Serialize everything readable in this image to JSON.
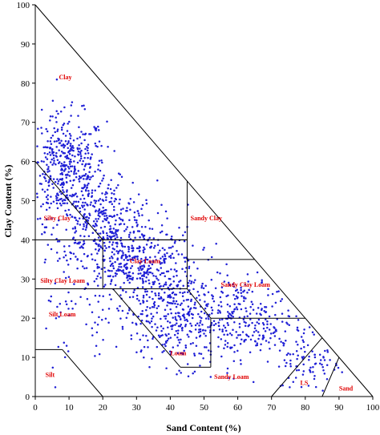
{
  "chart_data": {
    "type": "scatter",
    "title": "",
    "xlabel": "Sand Content (%)",
    "ylabel": "Clay Content (%)",
    "xlim": [
      0,
      100
    ],
    "ylim": [
      0,
      100
    ],
    "xticks": [
      "0",
      "10",
      "20",
      "30",
      "40",
      "50",
      "60",
      "70",
      "80",
      "90",
      "100"
    ],
    "yticks": [
      "0",
      "10",
      "20",
      "30",
      "40",
      "50",
      "60",
      "70",
      "80",
      "90",
      "100"
    ],
    "grid": false,
    "legend": "none",
    "point_color": "#1f1fd6",
    "label_color": "#e00000",
    "regions": [
      {
        "name": "Clay",
        "x": 7,
        "y": 81
      },
      {
        "name": "Silty Clay",
        "x": 2.5,
        "y": 45
      },
      {
        "name": "Sandy Clay",
        "x": 46,
        "y": 45
      },
      {
        "name": "Clay Loam",
        "x": 28,
        "y": 34
      },
      {
        "name": "Silty Clay Loam",
        "x": 1.5,
        "y": 29
      },
      {
        "name": "Sandy Clay Loam",
        "x": 55,
        "y": 28
      },
      {
        "name": "Loam",
        "x": 40,
        "y": 10.5
      },
      {
        "name": "Silt Loam",
        "x": 4,
        "y": 20.5
      },
      {
        "name": "Sandy Loam",
        "x": 53,
        "y": 4.5
      },
      {
        "name": "Silt",
        "x": 3,
        "y": 5
      },
      {
        "name": "LS",
        "x": 78.5,
        "y": 3
      },
      {
        "name": "Sand",
        "x": 90,
        "y": 1.5
      }
    ],
    "boundaries": [
      [
        [
          0,
          100
        ],
        [
          100,
          0
        ]
      ],
      [
        [
          0,
          60
        ],
        [
          20,
          40
        ]
      ],
      [
        [
          20,
          40
        ],
        [
          45,
          40
        ]
      ],
      [
        [
          45,
          55
        ],
        [
          45,
          27.5
        ]
      ],
      [
        [
          0,
          40
        ],
        [
          45,
          40
        ]
      ],
      [
        [
          20,
          40
        ],
        [
          20,
          27.5
        ]
      ],
      [
        [
          0,
          27.5
        ],
        [
          45,
          27.5
        ]
      ],
      [
        [
          45,
          35
        ],
        [
          65,
          35
        ]
      ],
      [
        [
          45,
          27.5
        ],
        [
          52,
          20
        ]
      ],
      [
        [
          52,
          20
        ],
        [
          80,
          20
        ]
      ],
      [
        [
          52,
          20
        ],
        [
          52,
          7.5
        ]
      ],
      [
        [
          43,
          7.5
        ],
        [
          52,
          7.5
        ]
      ],
      [
        [
          23,
          27.5
        ],
        [
          43,
          7.5
        ]
      ],
      [
        [
          0,
          12
        ],
        [
          8,
          12
        ]
      ],
      [
        [
          8,
          12
        ],
        [
          20,
          0
        ]
      ],
      [
        [
          70,
          0
        ],
        [
          85,
          15
        ]
      ],
      [
        [
          85,
          0
        ],
        [
          90,
          10
        ]
      ]
    ],
    "density_clusters": [
      {
        "x": 9,
        "y": 58,
        "sx": 6,
        "sy": 7,
        "n": 420
      },
      {
        "x": 20,
        "y": 45,
        "sx": 8,
        "sy": 5,
        "n": 300
      },
      {
        "x": 30,
        "y": 33,
        "sx": 9,
        "sy": 5,
        "n": 420
      },
      {
        "x": 42,
        "y": 20,
        "sx": 9,
        "sy": 6,
        "n": 330
      },
      {
        "x": 62,
        "y": 19,
        "sx": 9,
        "sy": 6,
        "n": 260
      },
      {
        "x": 82,
        "y": 9,
        "sx": 5,
        "sy": 4,
        "n": 80
      },
      {
        "x": 9,
        "y": 24,
        "sx": 5,
        "sy": 8,
        "n": 40
      }
    ]
  }
}
